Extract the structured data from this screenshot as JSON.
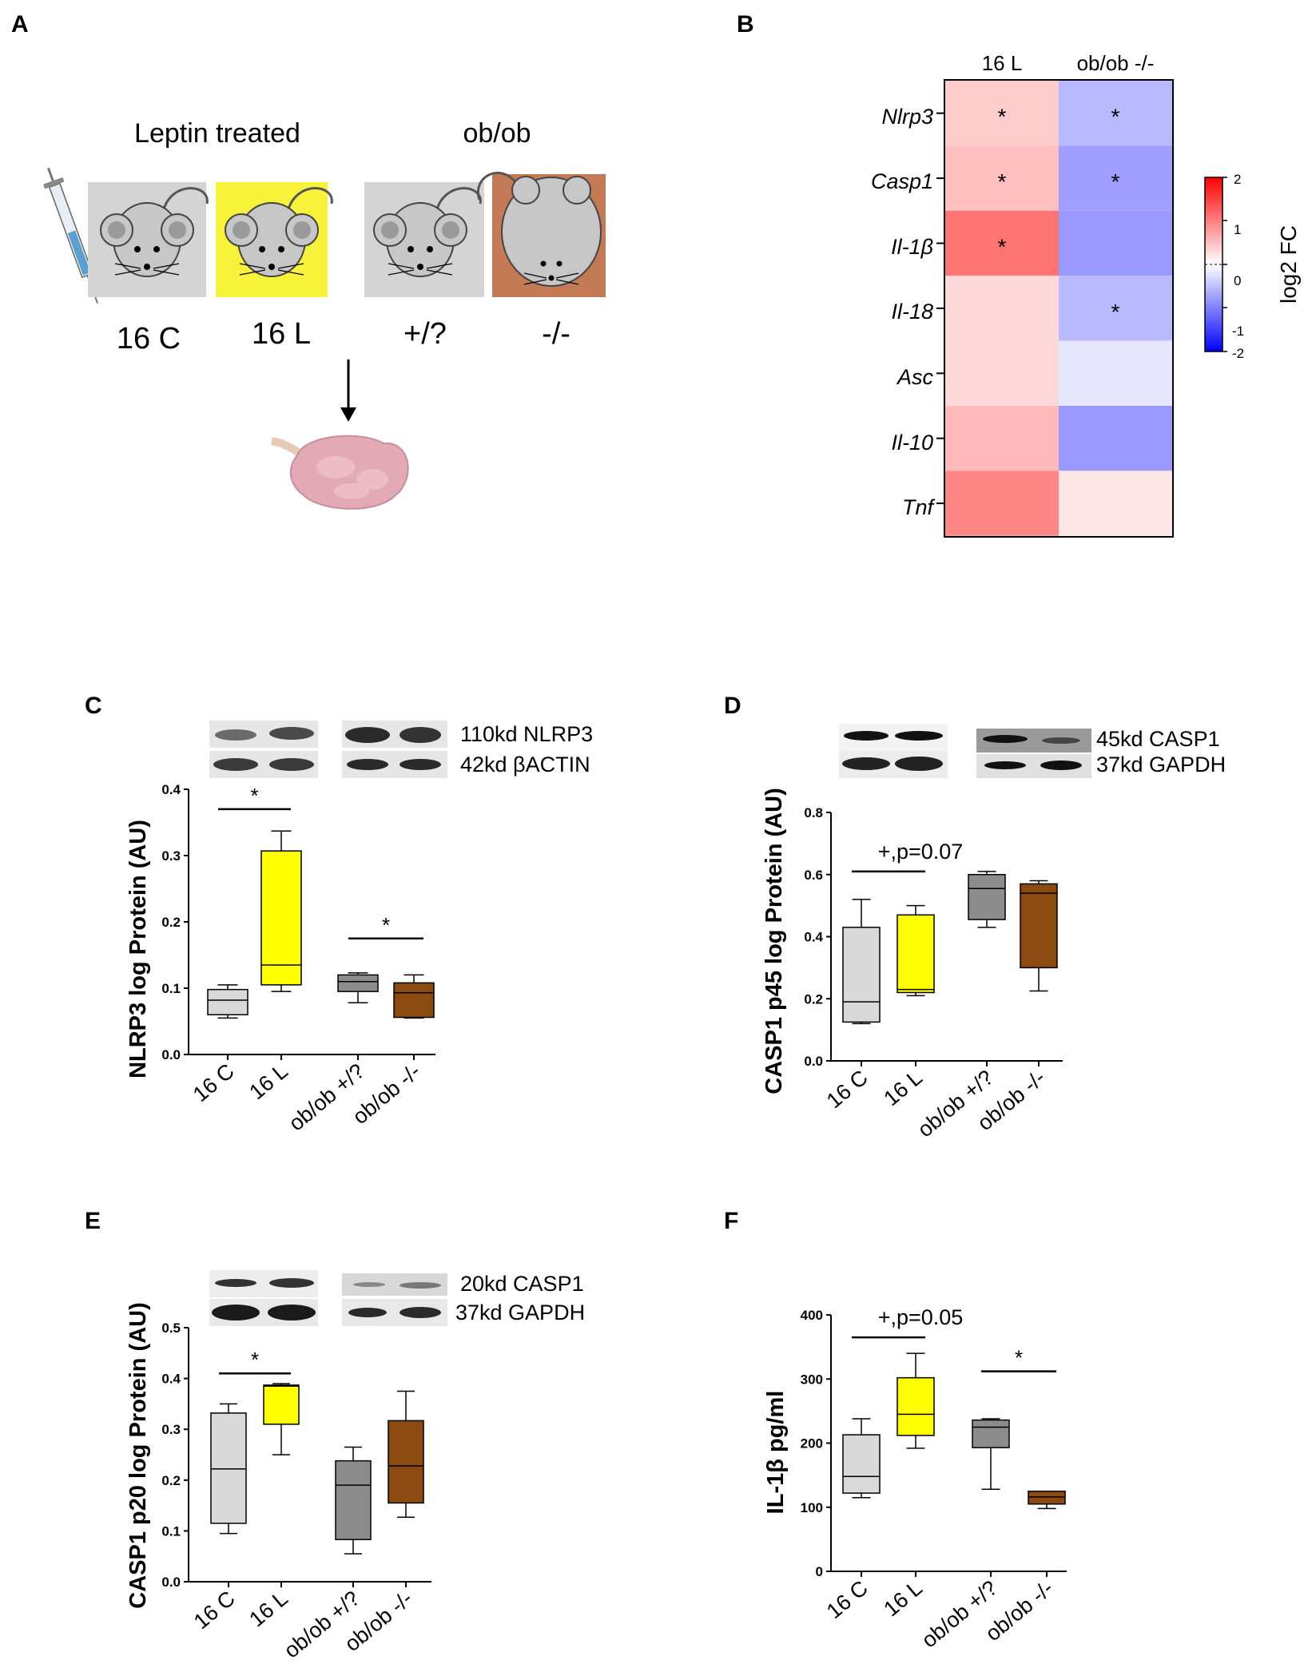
{
  "panel_labels": {
    "a": "A",
    "b": "B",
    "c": "C",
    "d": "D",
    "e": "E",
    "f": "F"
  },
  "panelA": {
    "group_leptin": "Leptin treated",
    "group_obob": "ob/ob",
    "mouse_labels": [
      "16 C",
      "16 L",
      "+/?",
      "-/-"
    ],
    "colors": {
      "gray": "#d4d4d4",
      "yellow": "#f7f23a",
      "brown": "#c47a55"
    }
  },
  "chart_data": [
    {
      "panel": "B",
      "type": "heatmap",
      "columns": [
        "16 L",
        "ob/ob -/-"
      ],
      "rows": [
        "Nlrp3",
        "Casp1",
        "Il-1β",
        "Il-18",
        "Asc",
        "Il-10",
        "Tnf"
      ],
      "values": [
        [
          0.4,
          -0.55
        ],
        [
          0.5,
          -0.75
        ],
        [
          1.1,
          -0.8
        ],
        [
          0.3,
          -0.55
        ],
        [
          0.3,
          -0.2
        ],
        [
          0.55,
          -0.8
        ],
        [
          0.95,
          0.2
        ]
      ],
      "significant": [
        [
          true,
          true
        ],
        [
          true,
          true
        ],
        [
          true,
          false
        ],
        [
          false,
          true
        ],
        [
          false,
          false
        ],
        [
          false,
          false
        ],
        [
          false,
          false
        ]
      ],
      "colorbar": {
        "label": "log2 FC",
        "ticks": [
          "2",
          "1",
          "0",
          "-1",
          "-2"
        ],
        "range": [
          -2,
          2
        ]
      }
    },
    {
      "panel": "C",
      "type": "box",
      "ylabel": "NLRP3 log Protein (AU)",
      "ylim": [
        0,
        0.4
      ],
      "yticks": [
        "0.0",
        "0.1",
        "0.2",
        "0.3",
        "0.4"
      ],
      "categories": [
        "16 C",
        "16 L",
        "ob/ob +/?",
        "ob/ob -/-"
      ],
      "colors": [
        "#d9d9d9",
        "#ffff00",
        "#8c8c8c",
        "#8b4a0f"
      ],
      "boxes": [
        {
          "min": 0.055,
          "q1": 0.06,
          "median": 0.082,
          "q3": 0.098,
          "max": 0.105
        },
        {
          "min": 0.095,
          "q1": 0.105,
          "median": 0.135,
          "q3": 0.307,
          "max": 0.337
        },
        {
          "min": 0.078,
          "q1": 0.095,
          "median": 0.11,
          "q3": 0.12,
          "max": 0.123
        },
        {
          "min": 0.055,
          "q1": 0.056,
          "median": 0.093,
          "q3": 0.108,
          "max": 0.12
        }
      ],
      "annotations": [
        {
          "text": "*",
          "from": 0,
          "to": 1,
          "y": 0.37
        },
        {
          "text": "*",
          "from": 2,
          "to": 3,
          "y": 0.175
        }
      ],
      "blot_labels": [
        "110kd NLRP3",
        "42kd βACTIN"
      ]
    },
    {
      "panel": "D",
      "type": "box",
      "ylabel": "CASP1 p45 log Protein (AU)",
      "ylim": [
        0,
        0.8
      ],
      "yticks": [
        "0.0",
        "0.2",
        "0.4",
        "0.6",
        "0.8"
      ],
      "categories": [
        "16 C",
        "16 L",
        "ob/ob +/?",
        "ob/ob -/-"
      ],
      "colors": [
        "#d9d9d9",
        "#ffff00",
        "#8c8c8c",
        "#8b4a0f"
      ],
      "boxes": [
        {
          "min": 0.12,
          "q1": 0.125,
          "median": 0.19,
          "q3": 0.43,
          "max": 0.52
        },
        {
          "min": 0.21,
          "q1": 0.22,
          "median": 0.23,
          "q3": 0.47,
          "max": 0.5
        },
        {
          "min": 0.43,
          "q1": 0.455,
          "median": 0.555,
          "q3": 0.6,
          "max": 0.61
        },
        {
          "min": 0.225,
          "q1": 0.3,
          "median": 0.54,
          "q3": 0.57,
          "max": 0.58
        }
      ],
      "annotations": [
        {
          "text": "+,p=0.07",
          "from": 0,
          "to": 1,
          "y": 0.61
        }
      ],
      "blot_labels": [
        "45kd CASP1",
        "37kd GAPDH"
      ]
    },
    {
      "panel": "E",
      "type": "box",
      "ylabel": "CASP1 p20 log Protein (AU)",
      "ylim": [
        0,
        0.5
      ],
      "yticks": [
        "0.0",
        "0.1",
        "0.2",
        "0.3",
        "0.4",
        "0.5"
      ],
      "categories": [
        "16 C",
        "16 L",
        "ob/ob +/?",
        "ob/ob -/-"
      ],
      "colors": [
        "#d9d9d9",
        "#ffff00",
        "#8c8c8c",
        "#8b4a0f"
      ],
      "boxes": [
        {
          "min": 0.095,
          "q1": 0.115,
          "median": 0.222,
          "q3": 0.332,
          "max": 0.35
        },
        {
          "min": 0.25,
          "q1": 0.31,
          "median": 0.385,
          "q3": 0.387,
          "max": 0.39
        },
        {
          "min": 0.055,
          "q1": 0.083,
          "median": 0.19,
          "q3": 0.238,
          "max": 0.265
        },
        {
          "min": 0.127,
          "q1": 0.155,
          "median": 0.228,
          "q3": 0.317,
          "max": 0.375
        }
      ],
      "annotations": [
        {
          "text": "*",
          "from": 0,
          "to": 1,
          "y": 0.41
        }
      ],
      "blot_labels": [
        "20kd CASP1",
        "37kd GAPDH"
      ]
    },
    {
      "panel": "F",
      "type": "box",
      "ylabel": "IL-1β pg/ml",
      "ylim": [
        0,
        400
      ],
      "yticks": [
        "0",
        "100",
        "200",
        "300",
        "400"
      ],
      "categories": [
        "16 C",
        "16 L",
        "ob/ob +/?",
        "ob/ob -/-"
      ],
      "colors": [
        "#d9d9d9",
        "#ffff00",
        "#8c8c8c",
        "#8b4a0f"
      ],
      "boxes": [
        {
          "min": 115,
          "q1": 122,
          "median": 148,
          "q3": 213,
          "max": 238
        },
        {
          "min": 192,
          "q1": 212,
          "median": 245,
          "q3": 302,
          "max": 340
        },
        {
          "min": 128,
          "q1": 193,
          "median": 225,
          "q3": 236,
          "max": 238
        },
        {
          "min": 98,
          "q1": 105,
          "median": 116,
          "q3": 125,
          "max": 125
        }
      ],
      "annotations": [
        {
          "text": "+,p=0.05",
          "from": 0,
          "to": 1,
          "y": 365
        },
        {
          "text": "*",
          "from": 2,
          "to": 3,
          "y": 312
        }
      ]
    }
  ]
}
